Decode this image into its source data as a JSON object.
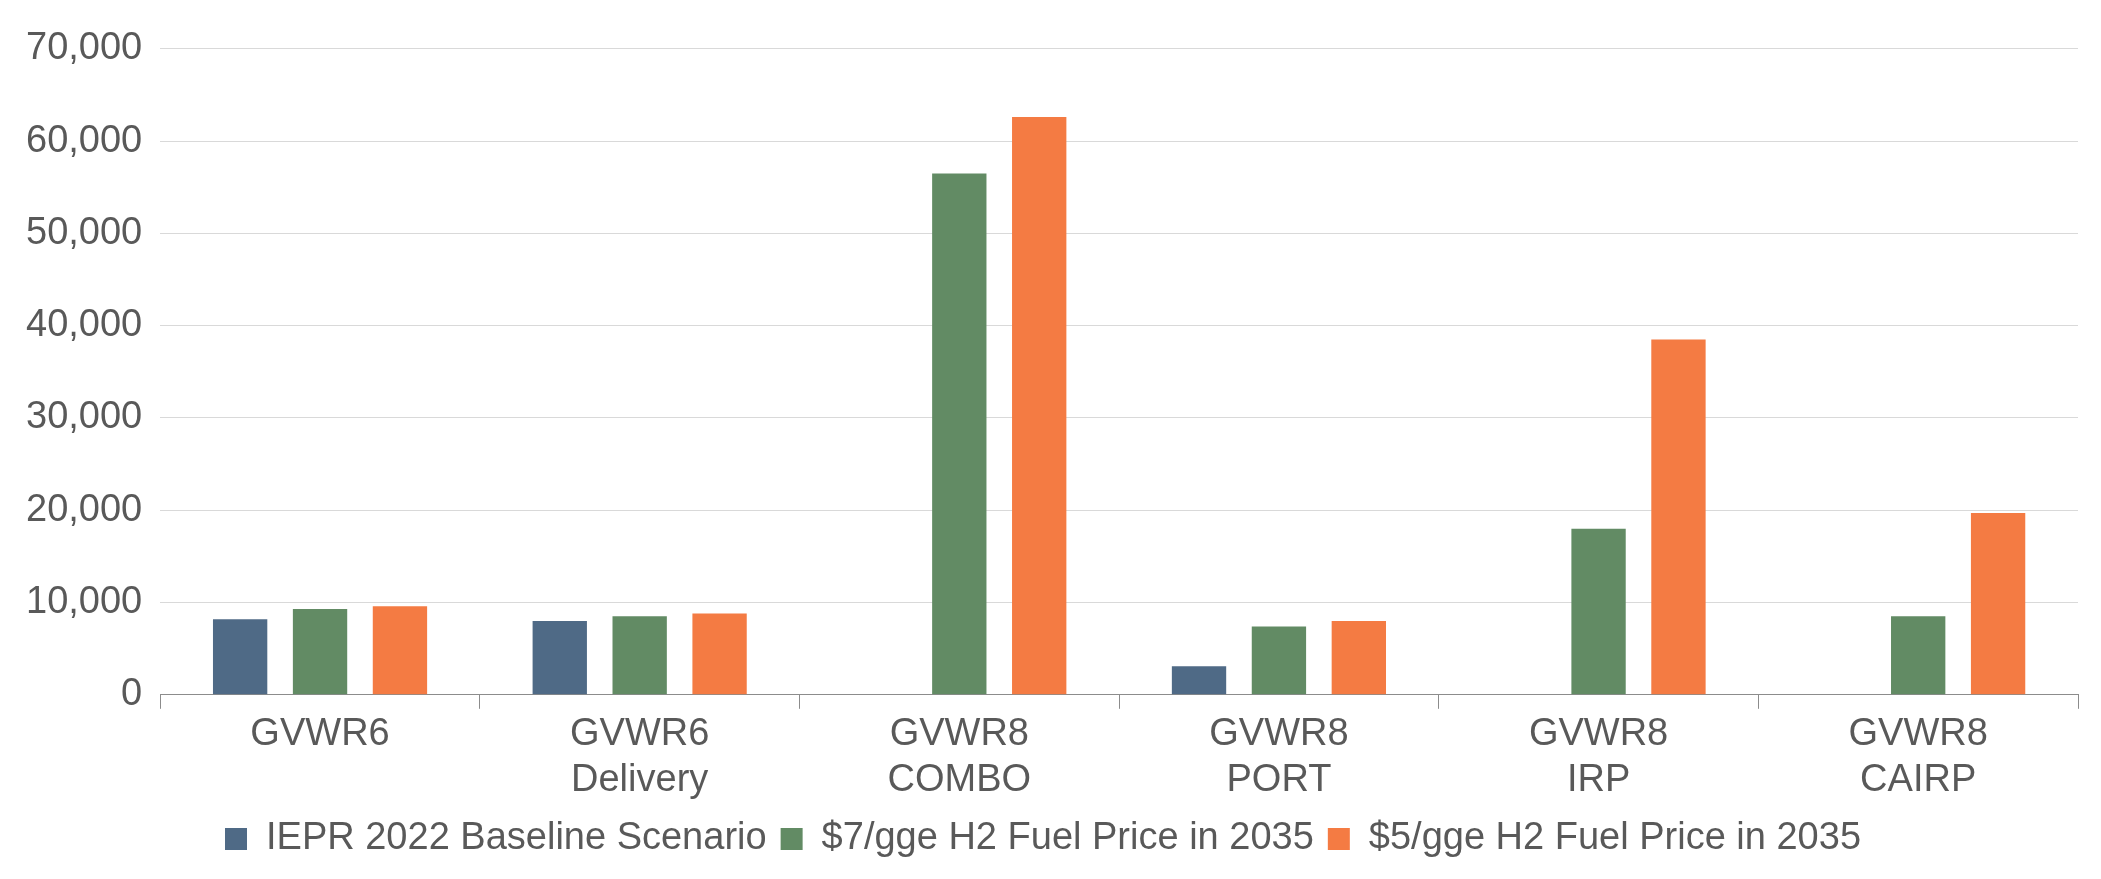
{
  "chart_data": {
    "type": "bar",
    "categories": [
      "GVWR6",
      "GVWR6 Delivery",
      "GVWR8 COMBO",
      "GVWR8 PORT",
      "GVWR8 IRP",
      "GVWR8 CAIRP"
    ],
    "series": [
      {
        "name": "IEPR 2022 Baseline Scenario",
        "color": "#4f6a86",
        "values": [
          8200,
          8000,
          null,
          3100,
          null,
          null
        ]
      },
      {
        "name": "$7/gge H2 Fuel Price in 2035",
        "color": "#628b64",
        "values": [
          9300,
          8500,
          56500,
          7400,
          18000,
          8500
        ]
      },
      {
        "name": "$5/gge H2 Fuel Price in 2035",
        "color": "#f47b43",
        "values": [
          9600,
          8800,
          62600,
          8000,
          38500,
          19700
        ]
      }
    ],
    "ylim": [
      0,
      70000
    ],
    "yticks": [
      0,
      {
        "value": 10000,
        "label": "10,000"
      },
      {
        "value": 20000,
        "label": "20,000"
      },
      {
        "value": 30000,
        "label": "30,000"
      },
      {
        "value": 40000,
        "label": "40,000"
      },
      {
        "value": 50000,
        "label": "50,000"
      },
      {
        "value": 60000,
        "label": "60,000"
      },
      {
        "value": 70000,
        "label": "70,000"
      }
    ],
    "grid": "y",
    "legend": "bottom"
  }
}
